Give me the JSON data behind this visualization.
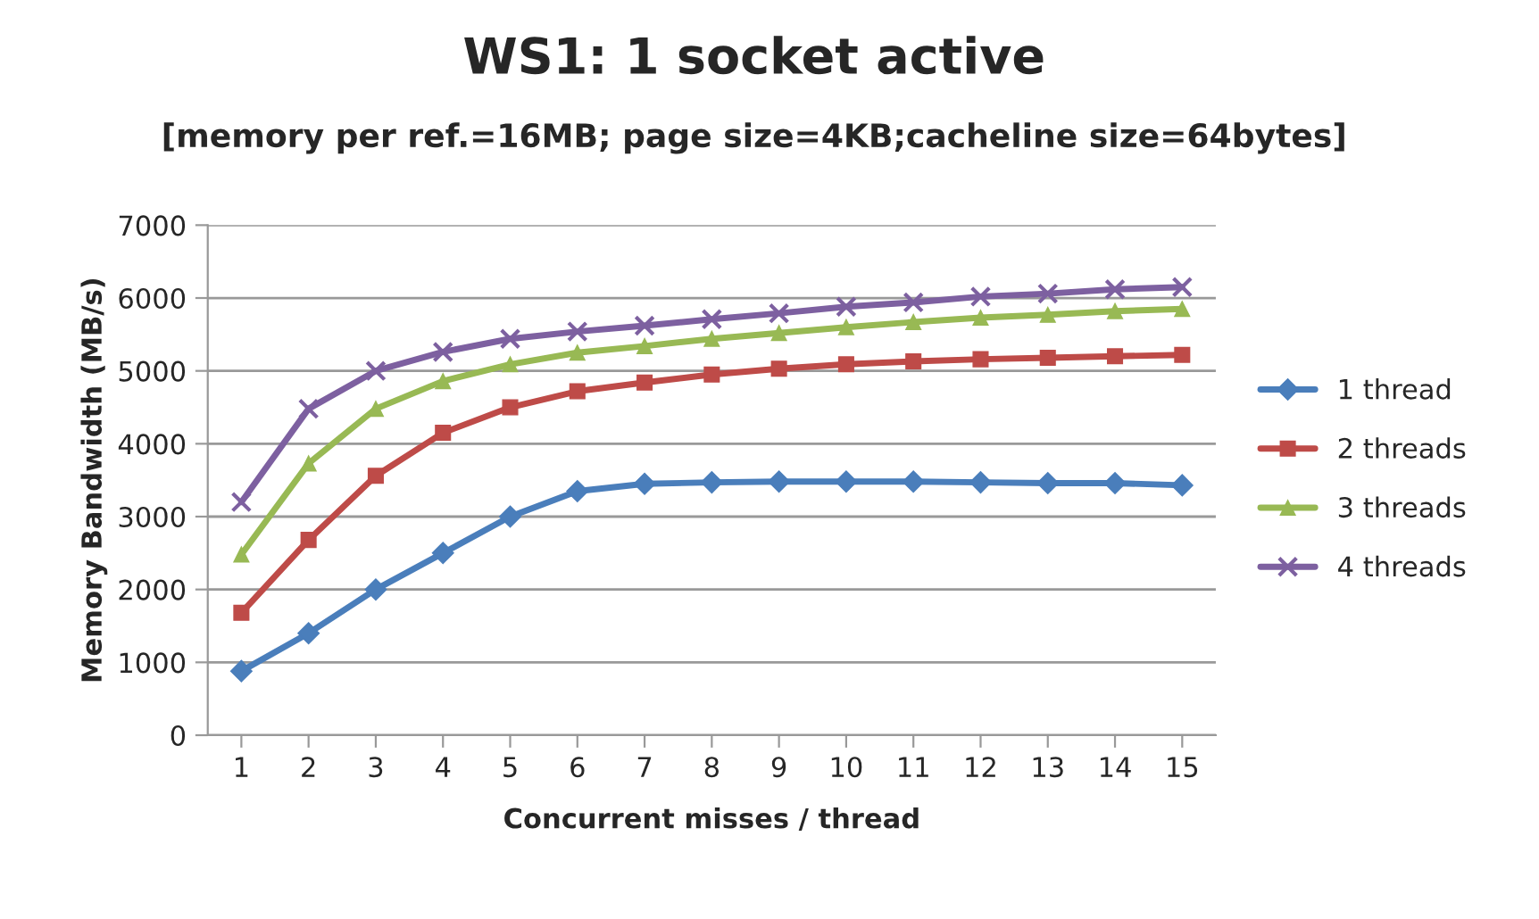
{
  "chart_data": {
    "type": "line",
    "title": "WS1: 1 socket active",
    "subtitle": "[memory per ref.=16MB; page size=4KB;cacheline size=64bytes]",
    "xlabel": "Concurrent misses / thread",
    "ylabel": "Memory Bandwidth (MB/s)",
    "categories": [
      "1",
      "2",
      "3",
      "4",
      "5",
      "6",
      "7",
      "8",
      "9",
      "10",
      "11",
      "12",
      "13",
      "14",
      "15"
    ],
    "series": [
      {
        "name": "1 thread",
        "color": "#4a7ebb",
        "marker": "diamond",
        "values": [
          880,
          1400,
          2000,
          2500,
          3000,
          3350,
          3450,
          3470,
          3480,
          3480,
          3480,
          3470,
          3460,
          3460,
          3430
        ]
      },
      {
        "name": "2 threads",
        "color": "#be4b48",
        "marker": "square",
        "values": [
          1680,
          2680,
          3560,
          4150,
          4500,
          4720,
          4840,
          4950,
          5030,
          5090,
          5130,
          5160,
          5180,
          5200,
          5220
        ]
      },
      {
        "name": "3 threads",
        "color": "#98b954",
        "marker": "triangle",
        "values": [
          2480,
          3730,
          4480,
          4860,
          5090,
          5250,
          5340,
          5440,
          5520,
          5600,
          5670,
          5730,
          5770,
          5820,
          5850
        ]
      },
      {
        "name": "4 threads",
        "color": "#7d60a0",
        "marker": "cross",
        "values": [
          3200,
          4480,
          5000,
          5260,
          5440,
          5540,
          5620,
          5710,
          5790,
          5880,
          5940,
          6020,
          6060,
          6120,
          6150
        ]
      }
    ],
    "ylim": [
      0,
      7000
    ],
    "yticks": [
      0,
      1000,
      2000,
      3000,
      4000,
      5000,
      6000,
      7000
    ],
    "grid": "y",
    "legend": "right"
  }
}
